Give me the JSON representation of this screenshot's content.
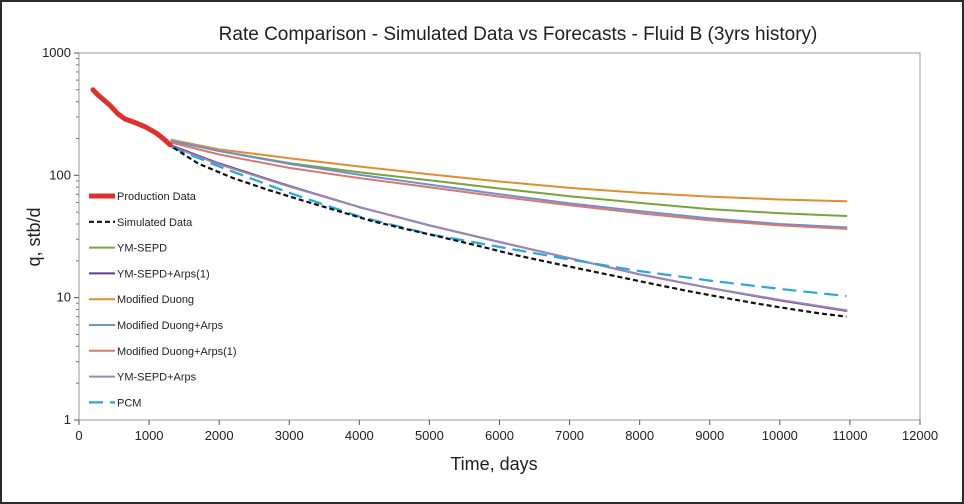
{
  "chart_data": {
    "type": "line",
    "title": "Rate Comparison - Simulated Data vs Forecasts - Fluid B (3yrs history)",
    "xlabel": "Time, days",
    "ylabel": "q, stb/d",
    "xlim": [
      0,
      12000
    ],
    "ylim": [
      1,
      1000
    ],
    "yscale": "log",
    "xticks": [
      "0",
      "1000",
      "2000",
      "3000",
      "4000",
      "5000",
      "6000",
      "7000",
      "8000",
      "9000",
      "10000",
      "11000",
      "12000"
    ],
    "yticks": [
      "1",
      "10",
      "100",
      "1000"
    ],
    "grid": false,
    "legend_position": "left-inside",
    "series": [
      {
        "name": "Production Data",
        "color": "#e0302a",
        "style": "thick",
        "points": [
          [
            200,
            500
          ],
          [
            260,
            460
          ],
          [
            340,
            420
          ],
          [
            450,
            370
          ],
          [
            550,
            320
          ],
          [
            650,
            290
          ],
          [
            800,
            270
          ],
          [
            950,
            248
          ],
          [
            1100,
            222
          ],
          [
            1200,
            200
          ],
          [
            1300,
            178
          ]
        ]
      },
      {
        "name": "Simulated Data",
        "color": "#111111",
        "style": "dash",
        "points": [
          [
            1350,
            168
          ],
          [
            1700,
            125
          ],
          [
            2200,
            95
          ],
          [
            2700,
            76
          ],
          [
            3200,
            62
          ],
          [
            3700,
            51
          ],
          [
            4200,
            42
          ],
          [
            4700,
            36
          ],
          [
            5200,
            31
          ],
          [
            5700,
            26.5
          ],
          [
            6200,
            22.5
          ],
          [
            6700,
            19.5
          ],
          [
            7200,
            17
          ],
          [
            7700,
            14.8
          ],
          [
            8200,
            12.9
          ],
          [
            8700,
            11.3
          ],
          [
            9200,
            10
          ],
          [
            9700,
            8.9
          ],
          [
            10200,
            8
          ],
          [
            10600,
            7.4
          ],
          [
            10950,
            7
          ]
        ]
      },
      {
        "name": "YM-SEPD",
        "color": "#7aa33a",
        "style": "solid",
        "points": [
          [
            1320,
            190
          ],
          [
            2000,
            158
          ],
          [
            3000,
            126
          ],
          [
            4000,
            106
          ],
          [
            5000,
            91
          ],
          [
            6000,
            78
          ],
          [
            7000,
            67.5
          ],
          [
            8000,
            59.5
          ],
          [
            9000,
            53
          ],
          [
            10000,
            49
          ],
          [
            10950,
            46.5
          ]
        ]
      },
      {
        "name": "YM-SEPD+Arps(1)",
        "color": "#5e3b8c",
        "style": "solid",
        "points": [
          [
            1320,
            175
          ],
          [
            2000,
            125
          ],
          [
            3000,
            82
          ],
          [
            4000,
            55
          ],
          [
            5000,
            39
          ],
          [
            6000,
            28.5
          ],
          [
            7000,
            21
          ],
          [
            8000,
            15.5
          ],
          [
            9000,
            12
          ],
          [
            10000,
            9.5
          ],
          [
            10950,
            7.8
          ]
        ]
      },
      {
        "name": "Modified Duong",
        "color": "#e38c2e",
        "style": "solid",
        "points": [
          [
            1320,
            195
          ],
          [
            2000,
            163
          ],
          [
            3000,
            138
          ],
          [
            4000,
            118
          ],
          [
            5000,
            102
          ],
          [
            6000,
            89
          ],
          [
            7000,
            79
          ],
          [
            8000,
            72
          ],
          [
            9000,
            67
          ],
          [
            10000,
            63.5
          ],
          [
            10950,
            61.5
          ]
        ]
      },
      {
        "name": "Modified Duong+Arps",
        "color": "#6f8fd0",
        "style": "solid",
        "points": [
          [
            1320,
            192
          ],
          [
            2000,
            158
          ],
          [
            3000,
            124
          ],
          [
            4000,
            101
          ],
          [
            5000,
            84
          ],
          [
            6000,
            70
          ],
          [
            7000,
            59
          ],
          [
            8000,
            51
          ],
          [
            9000,
            44.5
          ],
          [
            10000,
            40
          ],
          [
            10950,
            37.5
          ]
        ]
      },
      {
        "name": "Modified Duong+Arps(1)",
        "color": "#d9786c",
        "style": "solid",
        "points": [
          [
            1320,
            185
          ],
          [
            2000,
            148
          ],
          [
            3000,
            115
          ],
          [
            4000,
            95
          ],
          [
            5000,
            80
          ],
          [
            6000,
            67
          ],
          [
            7000,
            57
          ],
          [
            8000,
            49
          ],
          [
            9000,
            43
          ],
          [
            10000,
            39
          ],
          [
            10950,
            36.5
          ]
        ]
      },
      {
        "name": "YM-SEPD+Arps",
        "color": "#9b86b8",
        "style": "solid",
        "points": [
          [
            1320,
            172
          ],
          [
            2000,
            123
          ],
          [
            3000,
            81
          ],
          [
            4000,
            55
          ],
          [
            5000,
            39
          ],
          [
            6000,
            28.5
          ],
          [
            7000,
            21
          ],
          [
            8000,
            15.5
          ],
          [
            9000,
            12
          ],
          [
            10000,
            9.6
          ],
          [
            10950,
            7.9
          ]
        ]
      },
      {
        "name": "PCM",
        "color": "#2aa6dc",
        "style": "longdash",
        "points": [
          [
            1320,
            170
          ],
          [
            2000,
            118
          ],
          [
            3000,
            72
          ],
          [
            4000,
            46
          ],
          [
            5000,
            33
          ],
          [
            6000,
            26
          ],
          [
            7000,
            20.5
          ],
          [
            8000,
            16.5
          ],
          [
            9000,
            13.8
          ],
          [
            10000,
            11.8
          ],
          [
            10950,
            10.3
          ]
        ]
      }
    ]
  }
}
